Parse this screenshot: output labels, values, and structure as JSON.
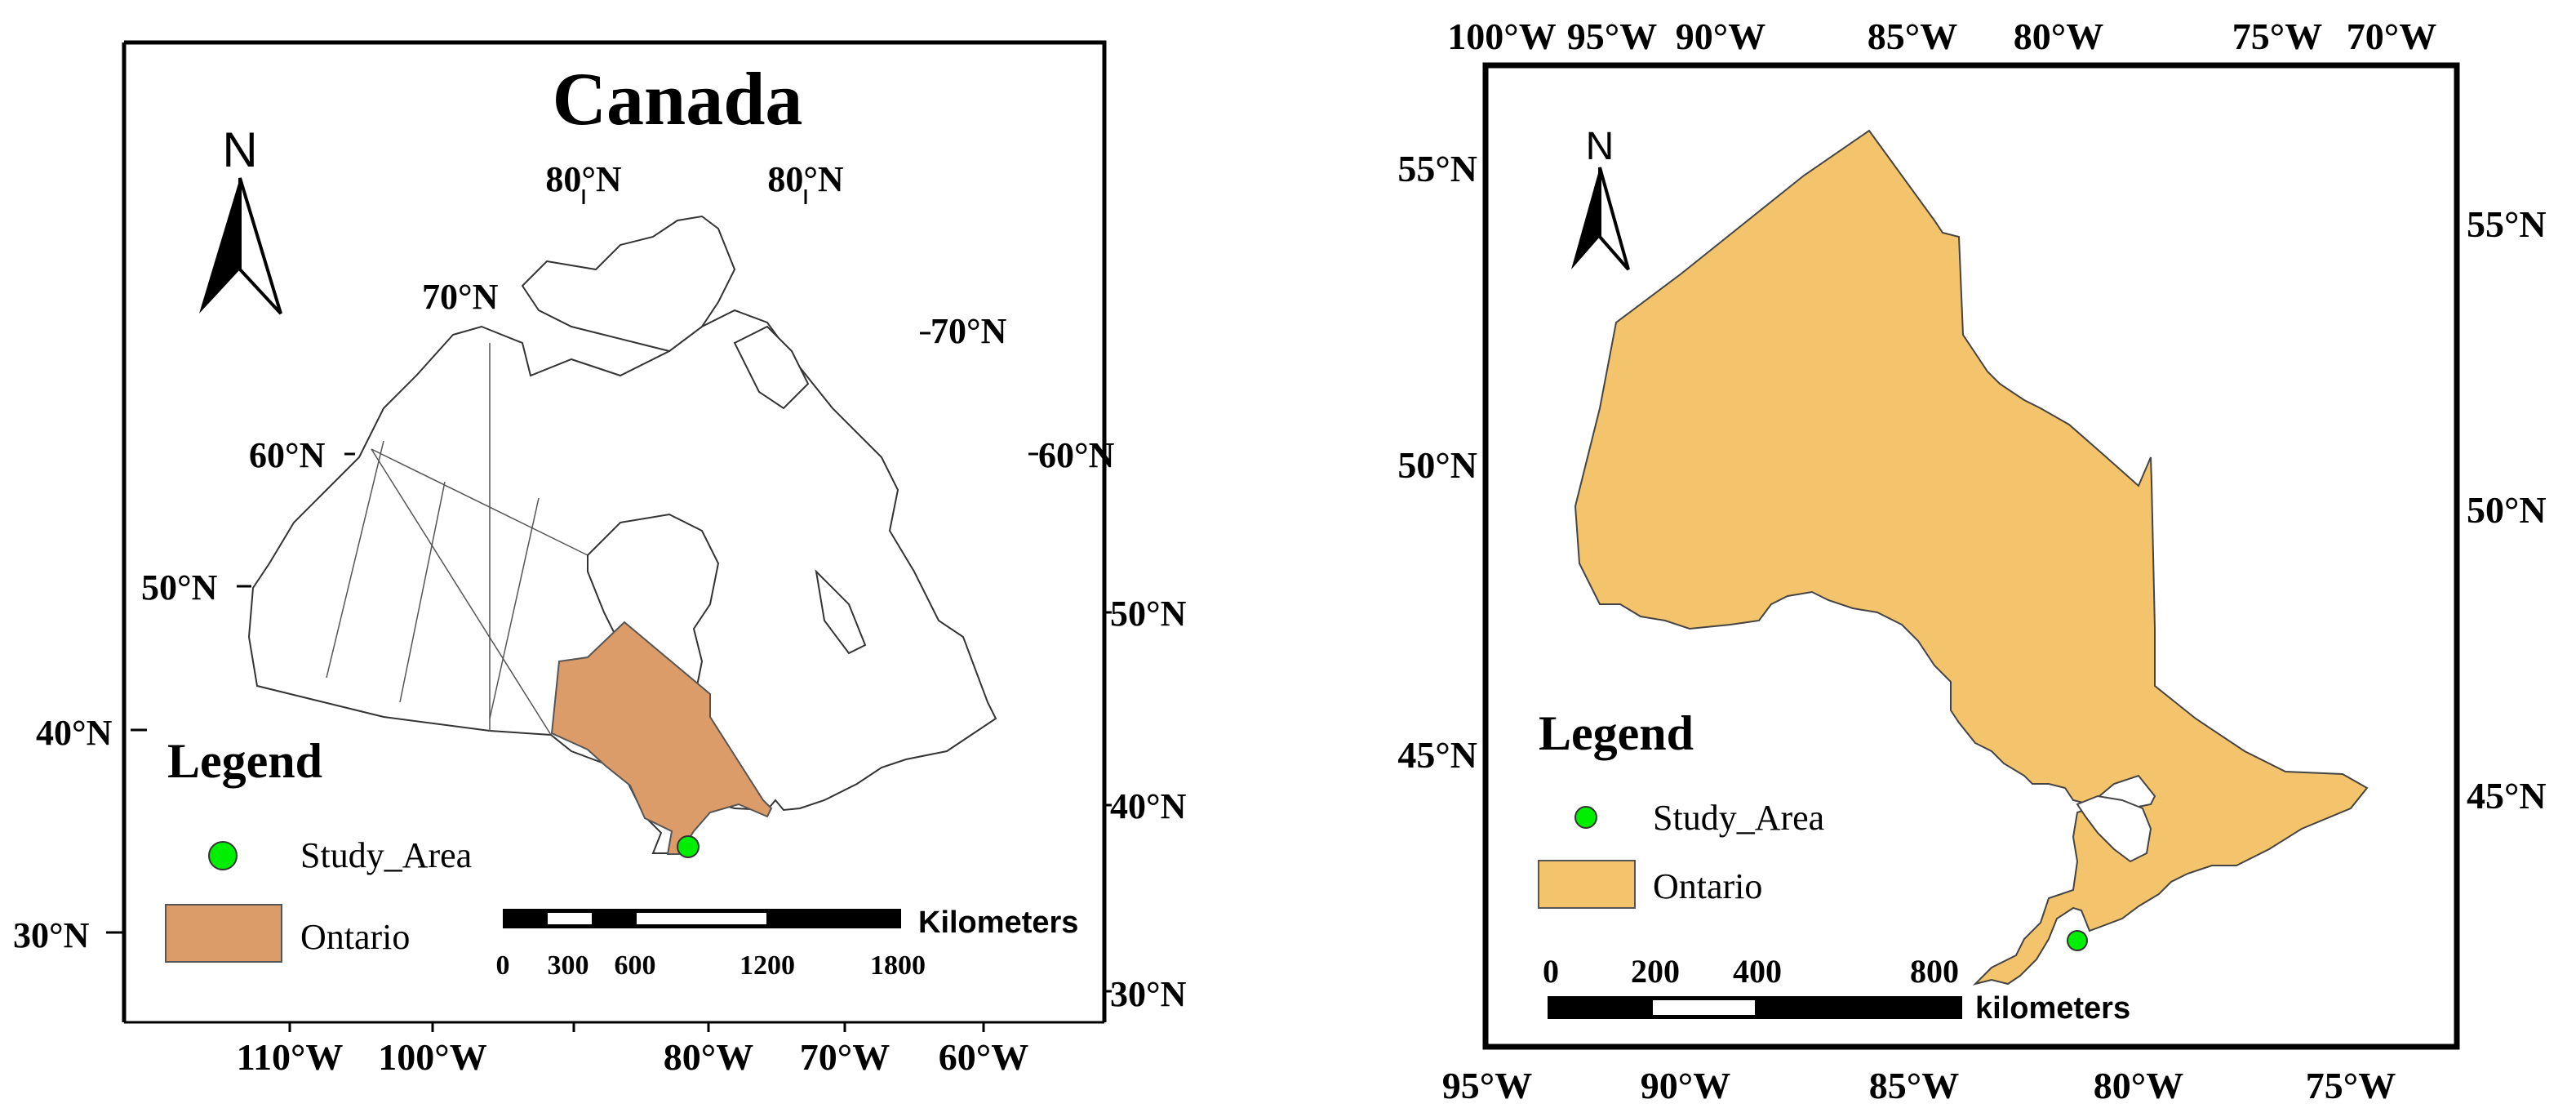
{
  "left_map": {
    "title": "Canada",
    "north_label": "N",
    "graticule_labels": [
      "80°N",
      "80°N",
      "70°N",
      "70°N",
      "60°N",
      "60°N",
      "50°N",
      "50°N",
      "40°N",
      "40°N",
      "30°N",
      "30°N"
    ],
    "bottom_lon_labels": [
      "110°W",
      "100°W",
      "80°W",
      "70°W",
      "60°W"
    ],
    "legend": {
      "title": "Legend",
      "items": [
        {
          "label": "Study_Area",
          "symbol": "point",
          "color": "#00ee00"
        },
        {
          "label": "Ontario",
          "symbol": "fill",
          "color": "#dc9c69"
        }
      ]
    },
    "scale_bar": {
      "unit_label": "Kilometers",
      "tick_labels": [
        "0",
        "300",
        "600",
        "1200",
        "1800"
      ]
    },
    "colors": {
      "ontario_fill": "#dc9c69",
      "study_area": "#00ee00"
    }
  },
  "right_map": {
    "north_label": "N",
    "top_lon_labels": [
      "100°W",
      "95°W",
      "90°W",
      "85°W",
      "80°W",
      "75°W",
      "70°W"
    ],
    "bottom_lon_labels": [
      "95°W",
      "90°W",
      "85°W",
      "80°W",
      "75°W"
    ],
    "left_lat_labels": [
      "55°N",
      "50°N",
      "45°N"
    ],
    "right_lat_labels": [
      "55°N",
      "50°N",
      "45°N"
    ],
    "legend": {
      "title": "Legend",
      "items": [
        {
          "label": "Study_Area",
          "symbol": "point",
          "color": "#00ee00"
        },
        {
          "label": "Ontario",
          "symbol": "fill",
          "color": "#f4c46c"
        }
      ]
    },
    "scale_bar": {
      "unit_label": "kilometers",
      "tick_labels": [
        "0",
        "200",
        "400",
        "800"
      ]
    },
    "colors": {
      "ontario_fill": "#f4c46c",
      "study_area": "#00ee00"
    }
  }
}
